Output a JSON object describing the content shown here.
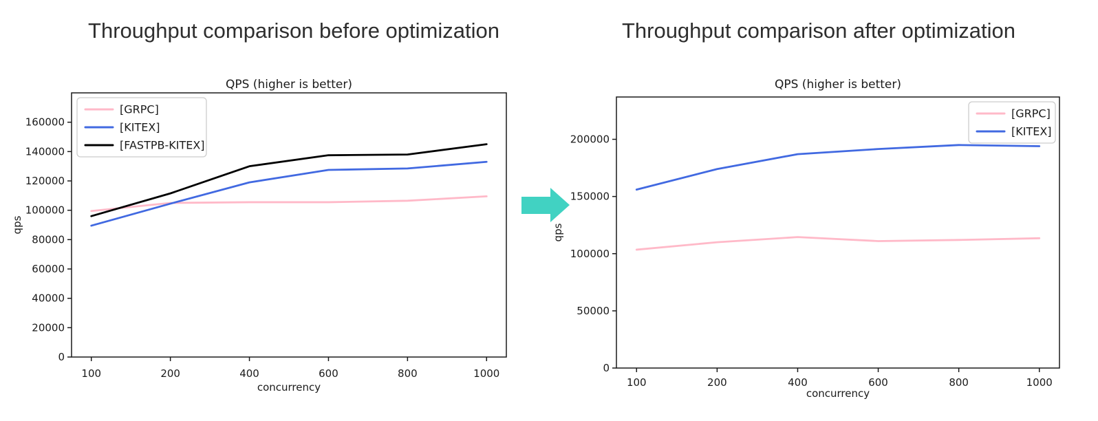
{
  "headings": {
    "before": "Throughput comparison before optimization",
    "after": "Throughput comparison after optimization"
  },
  "arrow": {
    "label": "before-to-after",
    "direction": "right",
    "color": "#41d2c2"
  },
  "chart_data": [
    {
      "id": "before",
      "type": "line",
      "title": "QPS (higher is better)",
      "xlabel": "concurrency",
      "ylabel": "qps",
      "categories": [
        "100",
        "200",
        "400",
        "600",
        "800",
        "1000"
      ],
      "series": [
        {
          "name": "[GRPC]",
          "color": "#ffb9c8",
          "values": [
            99500,
            105000,
            105500,
            105500,
            106500,
            109500
          ]
        },
        {
          "name": "[KITEX]",
          "color": "#4169e1",
          "values": [
            89500,
            104500,
            119000,
            127500,
            128500,
            133000
          ]
        },
        {
          "name": "[FASTPB-KITEX]",
          "color": "#000000",
          "values": [
            96000,
            111500,
            130000,
            137500,
            138000,
            145000
          ]
        }
      ],
      "yticks": [
        0,
        20000,
        40000,
        60000,
        80000,
        100000,
        120000,
        140000,
        160000
      ],
      "ylim": [
        0,
        180000
      ],
      "legend_position": "upper left",
      "grid": false
    },
    {
      "id": "after",
      "type": "line",
      "title": "QPS (higher is better)",
      "xlabel": "concurrency",
      "ylabel": "qps",
      "categories": [
        "100",
        "200",
        "400",
        "600",
        "800",
        "1000"
      ],
      "series": [
        {
          "name": "[GRPC]",
          "color": "#ffb9c8",
          "values": [
            103500,
            110000,
            114500,
            111000,
            112000,
            113500
          ]
        },
        {
          "name": "[KITEX]",
          "color": "#4169e1",
          "values": [
            156000,
            174000,
            187000,
            191500,
            195000,
            194000
          ]
        }
      ],
      "yticks": [
        0,
        50000,
        100000,
        150000,
        200000
      ],
      "ylim": [
        0,
        237000
      ],
      "legend_position": "upper right",
      "grid": false
    }
  ]
}
